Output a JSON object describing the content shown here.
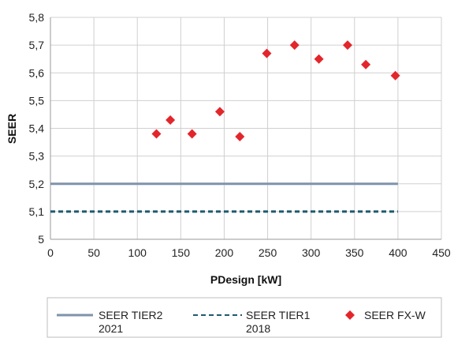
{
  "chart_data": {
    "type": "scatter",
    "title": "",
    "xlabel": "PDesign [kW]",
    "ylabel": "SEER",
    "xlim": [
      0,
      450
    ],
    "ylim": [
      5.0,
      5.8
    ],
    "x_ticks": [
      "0",
      "50",
      "100",
      "150",
      "200",
      "250",
      "300",
      "350",
      "400",
      "450"
    ],
    "y_ticks": [
      "5",
      "5,1",
      "5,2",
      "5,3",
      "5,4",
      "5,5",
      "5,6",
      "5,7",
      "5,8"
    ],
    "grid": true,
    "legend_position": "bottom",
    "series": [
      {
        "name_lines": [
          "SEER TIER2",
          "2021"
        ],
        "style": "solid-line",
        "color": "#7f93ab",
        "x": [
          0,
          400
        ],
        "y": [
          5.2,
          5.2
        ]
      },
      {
        "name_lines": [
          "SEER TIER1",
          "2018"
        ],
        "style": "dashed-line",
        "color": "#1f5a6e",
        "x": [
          0,
          400
        ],
        "y": [
          5.1,
          5.1
        ]
      },
      {
        "name_lines": [
          "SEER FX-W"
        ],
        "style": "diamond-markers",
        "color": "#e3262b",
        "x": [
          122,
          138,
          163,
          195,
          218,
          249,
          281,
          309,
          342,
          363,
          397
        ],
        "y": [
          5.38,
          5.43,
          5.38,
          5.46,
          5.37,
          5.67,
          5.7,
          5.65,
          5.7,
          5.63,
          5.59
        ]
      }
    ]
  }
}
